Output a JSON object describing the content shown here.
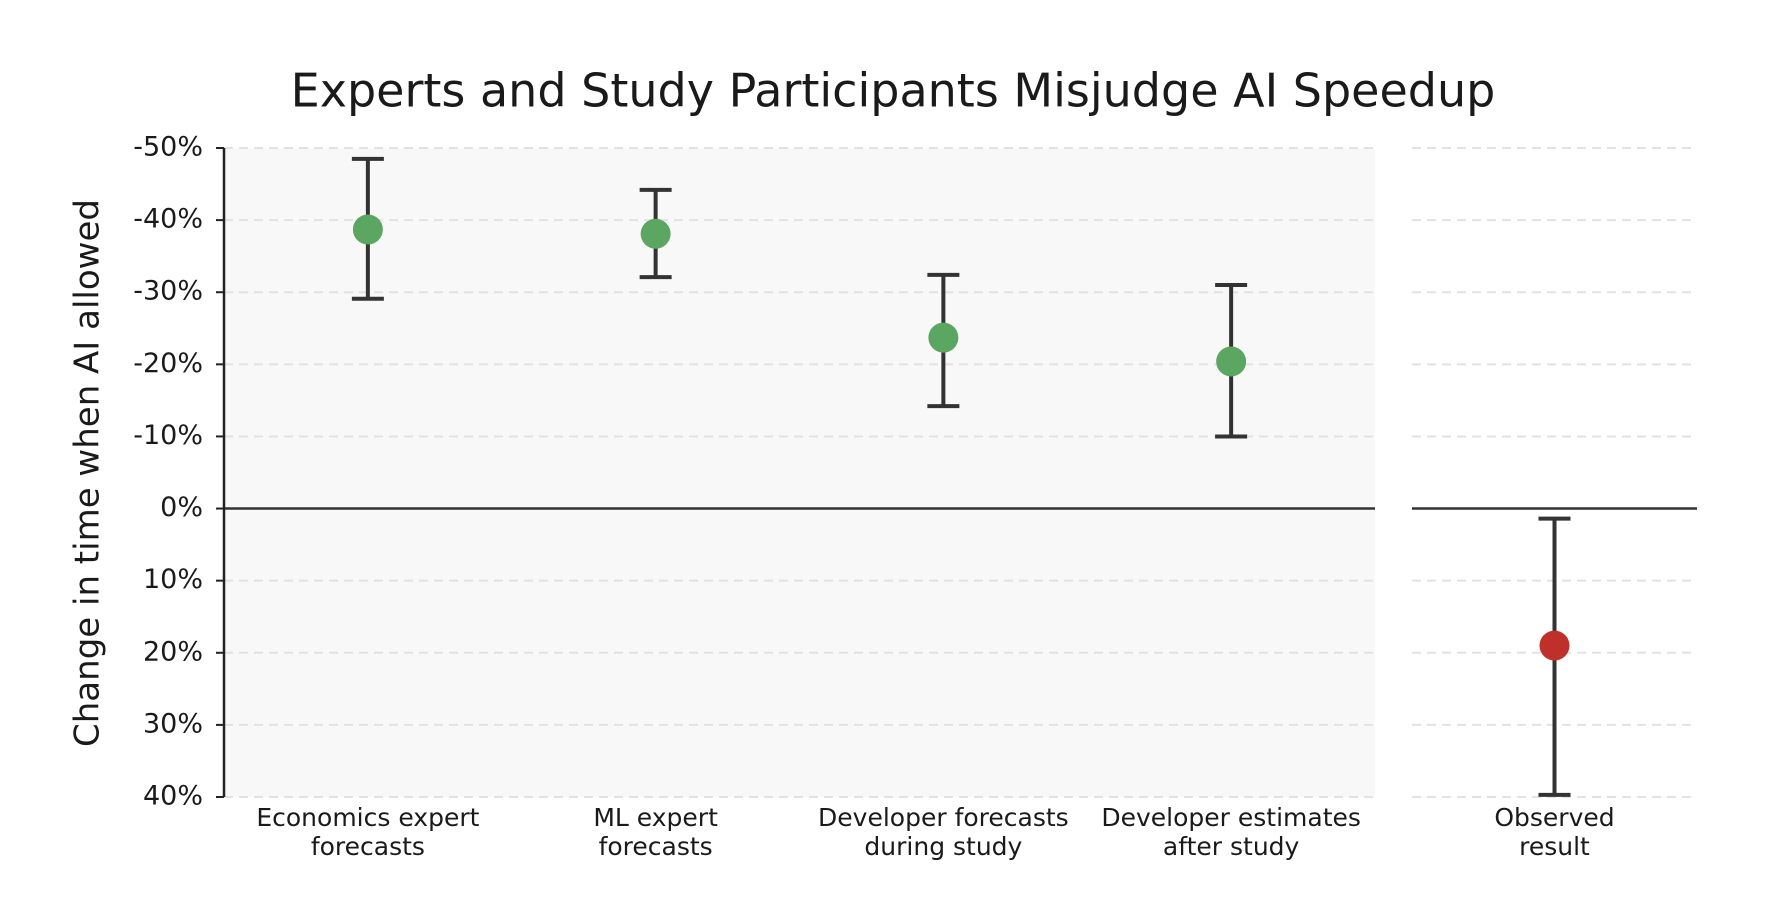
{
  "chart_data": {
    "type": "errorbar",
    "title": "Experts and Study Participants Misjudge AI Speedup",
    "ylabel": "Change in time when AI allowed",
    "ylim": [
      -50,
      40
    ],
    "inverted": true,
    "yticks": [
      {
        "value": -50,
        "label": "-50%"
      },
      {
        "value": -40,
        "label": "-40%"
      },
      {
        "value": -30,
        "label": "-30%"
      },
      {
        "value": -20,
        "label": "-20%"
      },
      {
        "value": -10,
        "label": "-10%"
      },
      {
        "value": 0,
        "label": "0%"
      },
      {
        "value": 10,
        "label": "10%"
      },
      {
        "value": 20,
        "label": "20%"
      },
      {
        "value": 30,
        "label": "30%"
      },
      {
        "value": 40,
        "label": "40%"
      }
    ],
    "grid": true,
    "panels": [
      {
        "categories": [
          "Economics expert\nforecasts",
          "ML expert\nforecasts",
          "Developer forecasts\nduring study",
          "Developer estimates\nafter study"
        ],
        "values": [
          -38.7,
          -38.1,
          -23.7,
          -20.4
        ],
        "lower": [
          -48.5,
          -44.2,
          -32.4,
          -31.0
        ],
        "upper": [
          -29.1,
          -32.1,
          -14.2,
          -10.0
        ],
        "color": "#5ba660",
        "background": "#f8f8f8"
      },
      {
        "categories": [
          "Observed\nresult"
        ],
        "values": [
          19.0
        ],
        "lower": [
          1.4
        ],
        "upper": [
          39.7
        ],
        "color": "#c0302a",
        "background": "#ffffff"
      }
    ]
  }
}
